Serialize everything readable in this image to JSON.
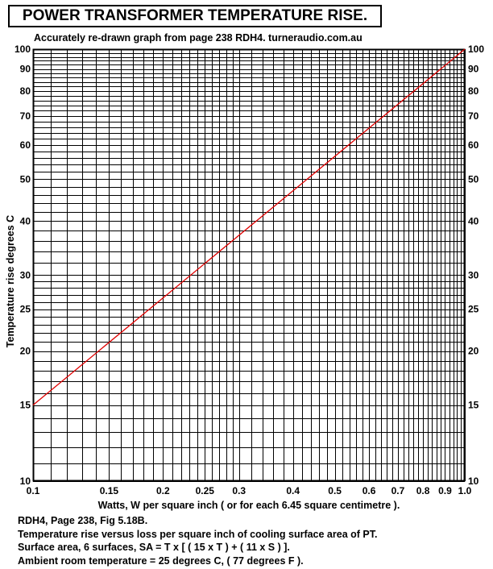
{
  "header": {
    "title": "POWER TRANSFORMER TEMPERATURE RISE.",
    "subtitle": "Accurately re-drawn graph from page 238 RDH4.  turneraudio.com.au"
  },
  "notes": [
    "RDH4, Page 238, Fig 5.18B.",
    "Temperature rise versus loss per square inch of cooling surface area of PT.",
    "Surface area, 6 surfaces, SA = T x [ ( 15 x T ) + ( 11 x S ) ].",
    "Ambient room temperature = 25 degrees C, ( 77 degrees F )."
  ],
  "colors": {
    "line": "#e00000",
    "grid": "#000000",
    "background": "#ffffff"
  },
  "chart_data": {
    "type": "line",
    "title": "POWER TRANSFORMER TEMPERATURE RISE.",
    "xlabel": "Watts, W per square inch ( or for each 6.45 square centimetre ).",
    "ylabel": "Temperature rise degrees C",
    "xscale": "log",
    "yscale": "log",
    "xlim": [
      0.1,
      1.0
    ],
    "ylim": [
      10,
      100
    ],
    "grid": true,
    "x_ticks": [
      0.1,
      0.15,
      0.2,
      0.25,
      0.3,
      0.4,
      0.5,
      0.6,
      0.7,
      0.8,
      0.9,
      1.0
    ],
    "x_tick_labels": [
      "0.1",
      "0.15",
      "0.2",
      "0.25",
      "0.3",
      "0.4",
      "0.5",
      "0.6",
      "0.7",
      "0.8",
      "0.9",
      "1.0"
    ],
    "y_ticks": [
      10,
      15,
      20,
      25,
      30,
      40,
      50,
      60,
      70,
      80,
      90,
      100
    ],
    "y_tick_labels": [
      "10",
      "15",
      "20",
      "25",
      "30",
      "40",
      "50",
      "60",
      "70",
      "80",
      "90",
      "100"
    ],
    "x_minor_grid": [
      0.1,
      0.11,
      0.12,
      0.13,
      0.14,
      0.15,
      0.16,
      0.17,
      0.18,
      0.19,
      0.2,
      0.21,
      0.22,
      0.23,
      0.24,
      0.25,
      0.26,
      0.27,
      0.28,
      0.29,
      0.3,
      0.32,
      0.34,
      0.36,
      0.38,
      0.4,
      0.42,
      0.44,
      0.46,
      0.48,
      0.5,
      0.52,
      0.54,
      0.56,
      0.58,
      0.6,
      0.62,
      0.64,
      0.66,
      0.68,
      0.7,
      0.72,
      0.74,
      0.76,
      0.78,
      0.8,
      0.82,
      0.84,
      0.86,
      0.88,
      0.9,
      0.92,
      0.94,
      0.96,
      0.98,
      1.0
    ],
    "y_minor_grid": [
      10,
      11,
      12,
      13,
      14,
      15,
      16,
      17,
      18,
      19,
      20,
      21,
      22,
      23,
      24,
      25,
      26,
      27,
      28,
      29,
      30,
      32,
      34,
      36,
      38,
      40,
      42,
      44,
      46,
      48,
      50,
      52,
      54,
      56,
      58,
      60,
      62,
      64,
      66,
      68,
      70,
      72,
      74,
      76,
      78,
      80,
      82,
      84,
      86,
      88,
      90,
      92,
      94,
      96,
      98,
      100
    ],
    "series": [
      {
        "x": [
          0.1,
          1.0
        ],
        "y": [
          15,
          100
        ]
      }
    ]
  }
}
